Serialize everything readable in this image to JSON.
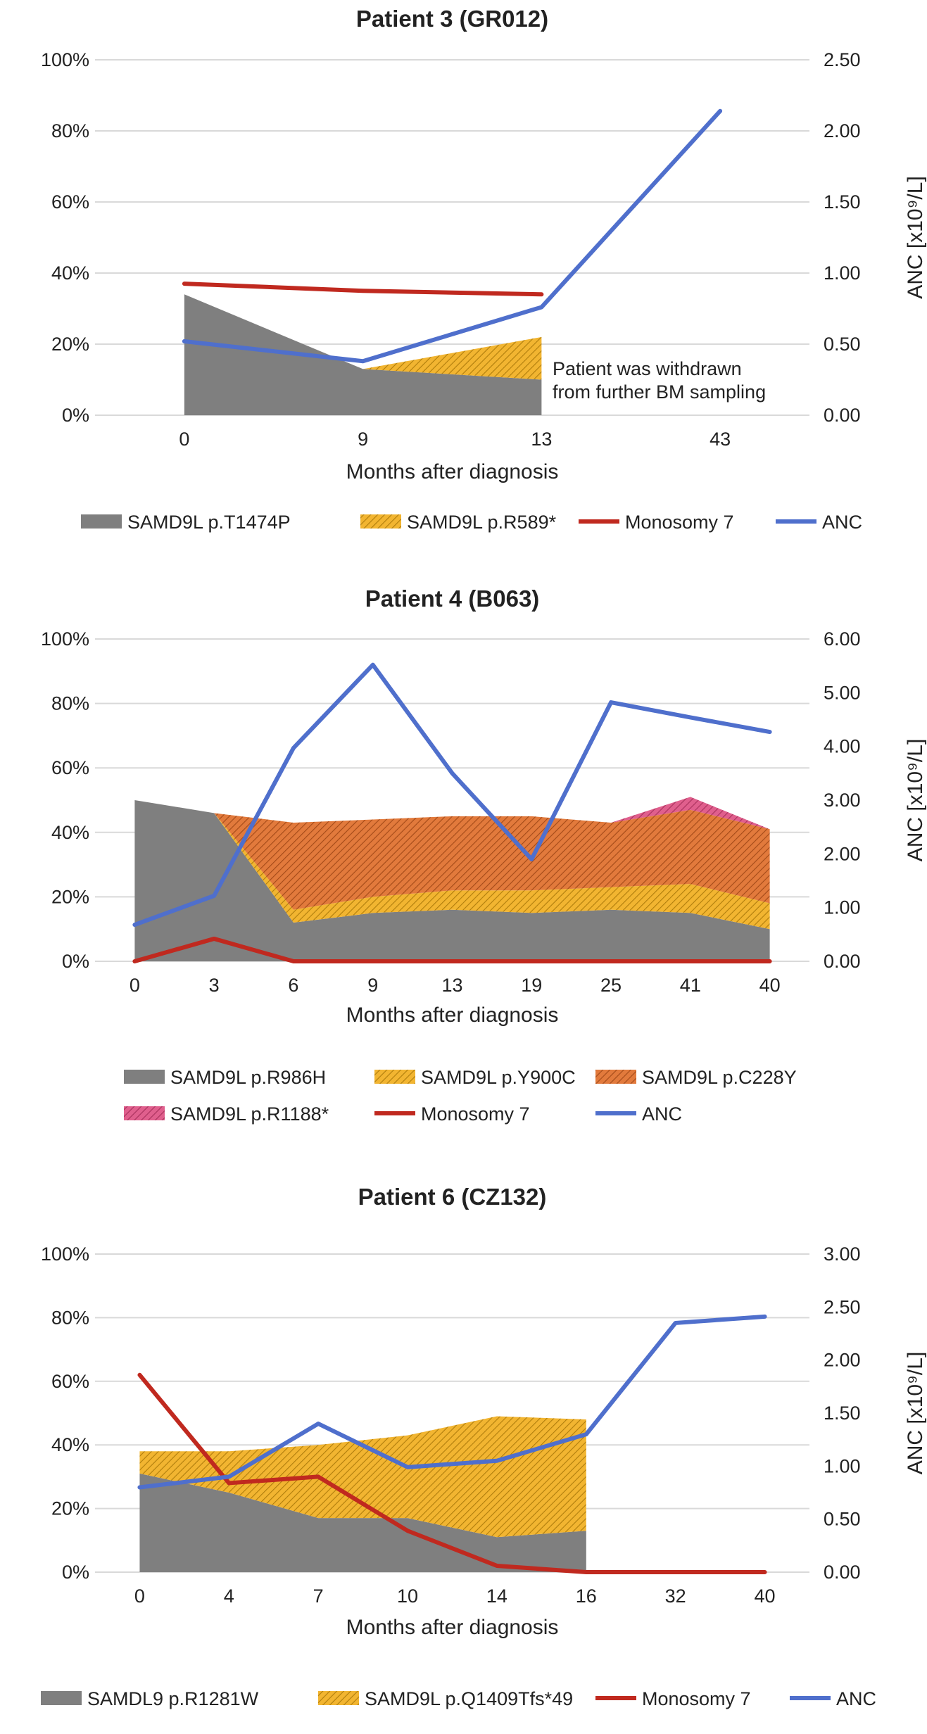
{
  "colors": {
    "gray": "#7f7f7f",
    "yellow": "#f2b531",
    "orange": "#e27a3c",
    "pink": "#e05f8d",
    "monosomy": "#c0291f",
    "anc": "#4f6fcc",
    "grid": "#d9d9d9"
  },
  "chart_data": [
    {
      "type": "area",
      "title": "Patient 3 (GR012)",
      "xlabel": "Months after diagnosis",
      "ylabel_left": "",
      "ylabel_right": "ANC [x10⁹/L]",
      "categories": [
        "0",
        "9",
        "13",
        "43"
      ],
      "y_left_ticks": [
        "0%",
        "20%",
        "40%",
        "60%",
        "80%",
        "100%"
      ],
      "y_right_ticks": [
        "0.00",
        "0.50",
        "1.00",
        "1.50",
        "2.00",
        "2.50"
      ],
      "y_right_max": 2.5,
      "annotation": [
        "Patient was withdrawn",
        "from further BM sampling"
      ],
      "stack_series": [
        {
          "name": "SAMD9L p.T1474P",
          "color_key": "gray",
          "pattern": "solid",
          "values": [
            34,
            13,
            10,
            null
          ]
        },
        {
          "name": "SAMD9L p.R589*",
          "color_key": "yellow",
          "pattern": "hatch",
          "values": [
            0,
            0,
            12,
            null
          ]
        }
      ],
      "line_series": [
        {
          "name": "Monosomy 7",
          "color_key": "monosomy",
          "axis": "left",
          "values": [
            37,
            35,
            34,
            null
          ]
        },
        {
          "name": "ANC",
          "color_key": "anc",
          "axis": "right",
          "values": [
            0.52,
            0.38,
            0.76,
            2.14
          ]
        }
      ],
      "legend_rows": [
        [
          "SAMD9L p.T1474P",
          "SAMD9L p.R589*",
          "Monosomy 7",
          "ANC"
        ]
      ]
    },
    {
      "type": "area",
      "title": "Patient 4 (B063)",
      "xlabel": "Months after diagnosis",
      "ylabel_left": "",
      "ylabel_right": "ANC [x10⁹/L]",
      "categories": [
        "0",
        "3",
        "6",
        "9",
        "13",
        "19",
        "25",
        "41",
        "40"
      ],
      "y_left_ticks": [
        "0%",
        "20%",
        "40%",
        "60%",
        "80%",
        "100%"
      ],
      "y_right_ticks": [
        "0.00",
        "1.00",
        "2.00",
        "3.00",
        "4.00",
        "5.00",
        "6.00"
      ],
      "y_right_max": 6,
      "annotation": [],
      "stack_series": [
        {
          "name": "SAMD9L p.R986H",
          "color_key": "gray",
          "pattern": "solid",
          "values": [
            50,
            46,
            12,
            15,
            16,
            15,
            16,
            15,
            10
          ]
        },
        {
          "name": "SAMD9L p.Y900C",
          "color_key": "yellow",
          "pattern": "hatch",
          "values": [
            0,
            0,
            4,
            5,
            6,
            7,
            7,
            9,
            8
          ]
        },
        {
          "name": "SAMD9L p.C228Y",
          "color_key": "orange",
          "pattern": "hatch",
          "values": [
            0,
            0,
            27,
            24,
            23,
            23,
            20,
            23,
            23
          ]
        },
        {
          "name": "SAMD9L p.R1188*",
          "color_key": "pink",
          "pattern": "hatch",
          "values": [
            0,
            0,
            0,
            0,
            0,
            0,
            0,
            4,
            0
          ]
        }
      ],
      "line_series": [
        {
          "name": "Monosomy 7",
          "color_key": "monosomy",
          "axis": "left",
          "values": [
            0,
            7,
            0,
            0,
            0,
            0,
            0,
            0,
            0
          ]
        },
        {
          "name": "ANC",
          "color_key": "anc",
          "axis": "right",
          "values": [
            0.68,
            1.22,
            3.97,
            5.52,
            3.5,
            1.9,
            4.82,
            4.54,
            4.27
          ]
        }
      ],
      "legend_rows": [
        [
          "SAMD9L p.R986H",
          "SAMD9L p.Y900C",
          "SAMD9L p.C228Y"
        ],
        [
          "SAMD9L p.R1188*",
          "Monosomy 7",
          "ANC"
        ]
      ]
    },
    {
      "type": "area",
      "title": "Patient 6 (CZ132)",
      "xlabel": "Months after diagnosis",
      "ylabel_left": "",
      "ylabel_right": "ANC [x10⁹/L]",
      "categories": [
        "0",
        "4",
        "7",
        "10",
        "14",
        "16",
        "32",
        "40"
      ],
      "y_left_ticks": [
        "0%",
        "20%",
        "40%",
        "60%",
        "80%",
        "100%"
      ],
      "y_right_ticks": [
        "0.00",
        "0.50",
        "1.00",
        "1.50",
        "2.00",
        "2.50",
        "3.00"
      ],
      "y_right_max": 3,
      "annotation": [],
      "stack_series": [
        {
          "name": "SAMDL9 p.R1281W",
          "color_key": "gray",
          "pattern": "solid",
          "values": [
            31,
            25,
            17,
            17,
            11,
            13,
            null,
            null
          ]
        },
        {
          "name": "SAMD9L p.Q1409Tfs*49",
          "color_key": "yellow",
          "pattern": "hatch",
          "values": [
            7,
            13,
            23,
            26,
            38,
            35,
            null,
            null
          ]
        }
      ],
      "line_series": [
        {
          "name": "Monosomy 7",
          "color_key": "monosomy",
          "axis": "left",
          "values": [
            62,
            28,
            30,
            13,
            2,
            0,
            0,
            0
          ]
        },
        {
          "name": "ANC",
          "color_key": "anc",
          "axis": "right",
          "values": [
            0.8,
            0.9,
            1.4,
            0.99,
            1.05,
            1.3,
            2.35,
            2.41
          ]
        }
      ],
      "legend_rows": [
        [
          "SAMDL9 p.R1281W",
          "SAMD9L p.Q1409Tfs*49",
          "Monosomy 7",
          "ANC"
        ]
      ]
    }
  ]
}
